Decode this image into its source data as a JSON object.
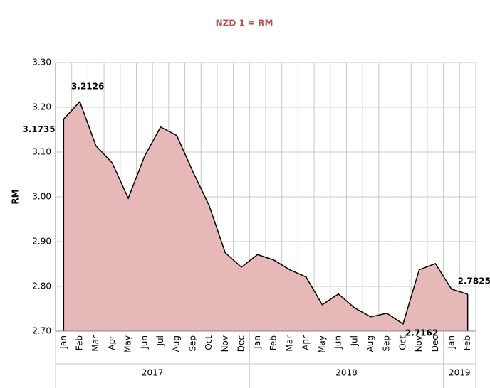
{
  "chart_data": {
    "type": "area",
    "title": "NZD 1 = RM",
    "title_color": "#c0504d",
    "ylabel": "RM",
    "groups": [
      {
        "label": "2017",
        "categories": [
          "Jan",
          "Feb",
          "Mar",
          "Apr",
          "May",
          "Jun",
          "Jul",
          "Aug",
          "Sep",
          "Oct",
          "Nov",
          "Dec"
        ]
      },
      {
        "label": "2018",
        "categories": [
          "Jan",
          "Feb",
          "Mar",
          "Apr",
          "May",
          "Jun",
          "Jul",
          "Aug",
          "Sep",
          "Oct",
          "Nov",
          "Dec"
        ]
      },
      {
        "label": "2019",
        "categories": [
          "Jan",
          "Feb"
        ]
      }
    ],
    "values": [
      3.1735,
      3.2126,
      3.114,
      3.076,
      2.997,
      3.09,
      3.156,
      3.137,
      3.056,
      2.981,
      2.875,
      2.843,
      2.871,
      2.859,
      2.837,
      2.821,
      2.759,
      2.783,
      2.752,
      2.732,
      2.74,
      2.7162,
      2.837,
      2.851,
      2.794,
      2.7825
    ],
    "value_labels": [
      "3.1735",
      "3.2126",
      null,
      null,
      null,
      null,
      null,
      null,
      null,
      null,
      null,
      null,
      null,
      null,
      null,
      null,
      null,
      null,
      null,
      null,
      null,
      "2.7162",
      null,
      null,
      null,
      "2.7825"
    ],
    "fill": "#e6b8b7",
    "line_color": "#000000",
    "ylim": [
      2.7,
      3.3
    ],
    "yticks": [
      {
        "value": 2.7,
        "label": "2.70"
      },
      {
        "value": 2.8,
        "label": "2.80"
      },
      {
        "value": 2.9,
        "label": "2.90"
      },
      {
        "value": 3.0,
        "label": "3.00"
      },
      {
        "value": 3.1,
        "label": "3.10"
      },
      {
        "value": 3.2,
        "label": "3.20"
      },
      {
        "value": 3.3,
        "label": "3.30"
      }
    ],
    "grid": true
  }
}
